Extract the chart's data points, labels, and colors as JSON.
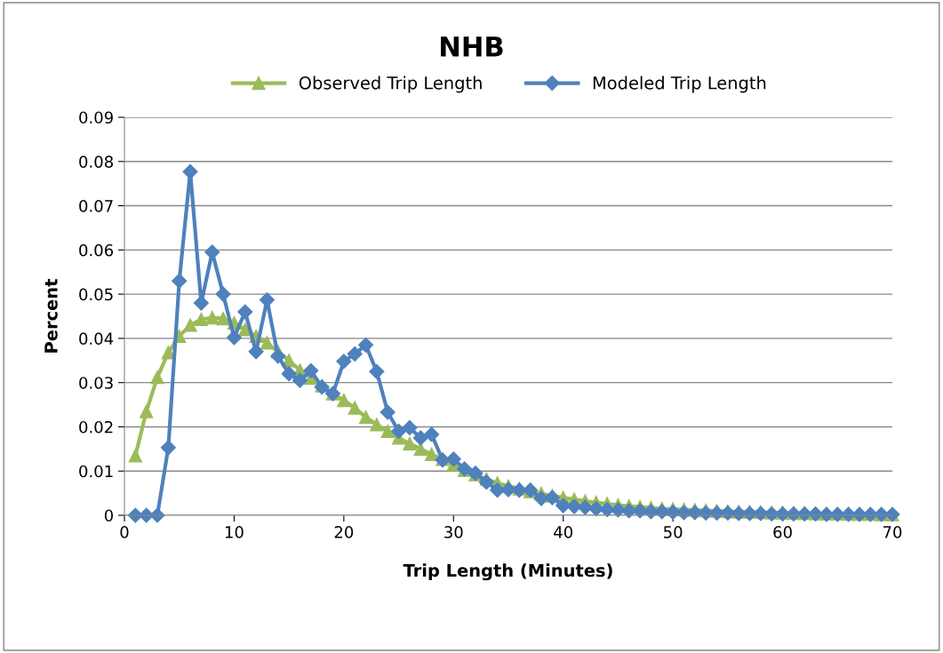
{
  "chart_data": {
    "type": "line",
    "title": "NHB",
    "xlabel": "Trip Length (Minutes)",
    "ylabel": "Percent",
    "x": [
      1,
      2,
      3,
      4,
      5,
      6,
      7,
      8,
      9,
      10,
      11,
      12,
      13,
      14,
      15,
      16,
      17,
      18,
      19,
      20,
      21,
      22,
      23,
      24,
      25,
      26,
      27,
      28,
      29,
      30,
      31,
      32,
      33,
      34,
      35,
      36,
      37,
      38,
      39,
      40,
      41,
      42,
      43,
      44,
      45,
      46,
      47,
      48,
      49,
      50,
      51,
      52,
      53,
      54,
      55,
      56,
      57,
      58,
      59,
      60,
      61,
      62,
      63,
      64,
      65,
      66,
      67,
      68,
      69,
      70
    ],
    "series": [
      {
        "name": "Observed Trip Length",
        "color": "#9bbb59",
        "marker": "triangle",
        "values": [
          0.0135,
          0.0235,
          0.0312,
          0.0368,
          0.0405,
          0.043,
          0.0443,
          0.0447,
          0.0445,
          0.0435,
          0.042,
          0.0405,
          0.039,
          0.037,
          0.035,
          0.0328,
          0.031,
          0.0293,
          0.0275,
          0.026,
          0.0243,
          0.0222,
          0.0205,
          0.019,
          0.0175,
          0.0162,
          0.015,
          0.0138,
          0.0127,
          0.0115,
          0.0102,
          0.0092,
          0.0082,
          0.0073,
          0.0066,
          0.006,
          0.0054,
          0.0049,
          0.0044,
          0.004,
          0.0036,
          0.0032,
          0.0029,
          0.0026,
          0.0023,
          0.0021,
          0.0019,
          0.0017,
          0.0015,
          0.0014,
          0.0013,
          0.0012,
          0.0011,
          0.001,
          0.0009,
          0.0008,
          0.0008,
          0.0007,
          0.0006,
          0.0006,
          0.0005,
          0.0005,
          0.0004,
          0.0004,
          0.0004,
          0.0003,
          0.0003,
          0.0003,
          0.0002,
          0.0002
        ]
      },
      {
        "name": "Modeled Trip Length",
        "color": "#4f81bd",
        "marker": "diamond",
        "values": [
          0,
          0,
          0,
          0.0153,
          0.053,
          0.0777,
          0.048,
          0.0595,
          0.05,
          0.0402,
          0.046,
          0.037,
          0.0487,
          0.036,
          0.032,
          0.0305,
          0.0327,
          0.029,
          0.0275,
          0.0348,
          0.0365,
          0.0385,
          0.0325,
          0.0233,
          0.019,
          0.0198,
          0.0175,
          0.0183,
          0.0125,
          0.0127,
          0.0105,
          0.0095,
          0.0075,
          0.0057,
          0.0058,
          0.0057,
          0.0057,
          0.0038,
          0.004,
          0.0022,
          0.002,
          0.0018,
          0.0015,
          0.0013,
          0.0012,
          0.001,
          0.001,
          0.0008,
          0.0008,
          0.0007,
          0.0006,
          0.0006,
          0.0005,
          0.0005,
          0.0005,
          0.0004,
          0.0004,
          0.0004,
          0.0003,
          0.0003,
          0.0003,
          0.0003,
          0.0003,
          0.0002,
          0.0002,
          0.0002,
          0.0002,
          0.0002,
          0.0002,
          0.0002
        ]
      }
    ],
    "xlim": [
      0,
      70
    ],
    "xticks": [
      0,
      10,
      20,
      30,
      40,
      50,
      60,
      70
    ],
    "ylim": [
      0,
      0.09
    ],
    "yticks": [
      0,
      0.01,
      0.02,
      0.03,
      0.04,
      0.05,
      0.06,
      0.07,
      0.08,
      0.09
    ],
    "grid": "y",
    "legend": "top",
    "line_style": "solid"
  }
}
